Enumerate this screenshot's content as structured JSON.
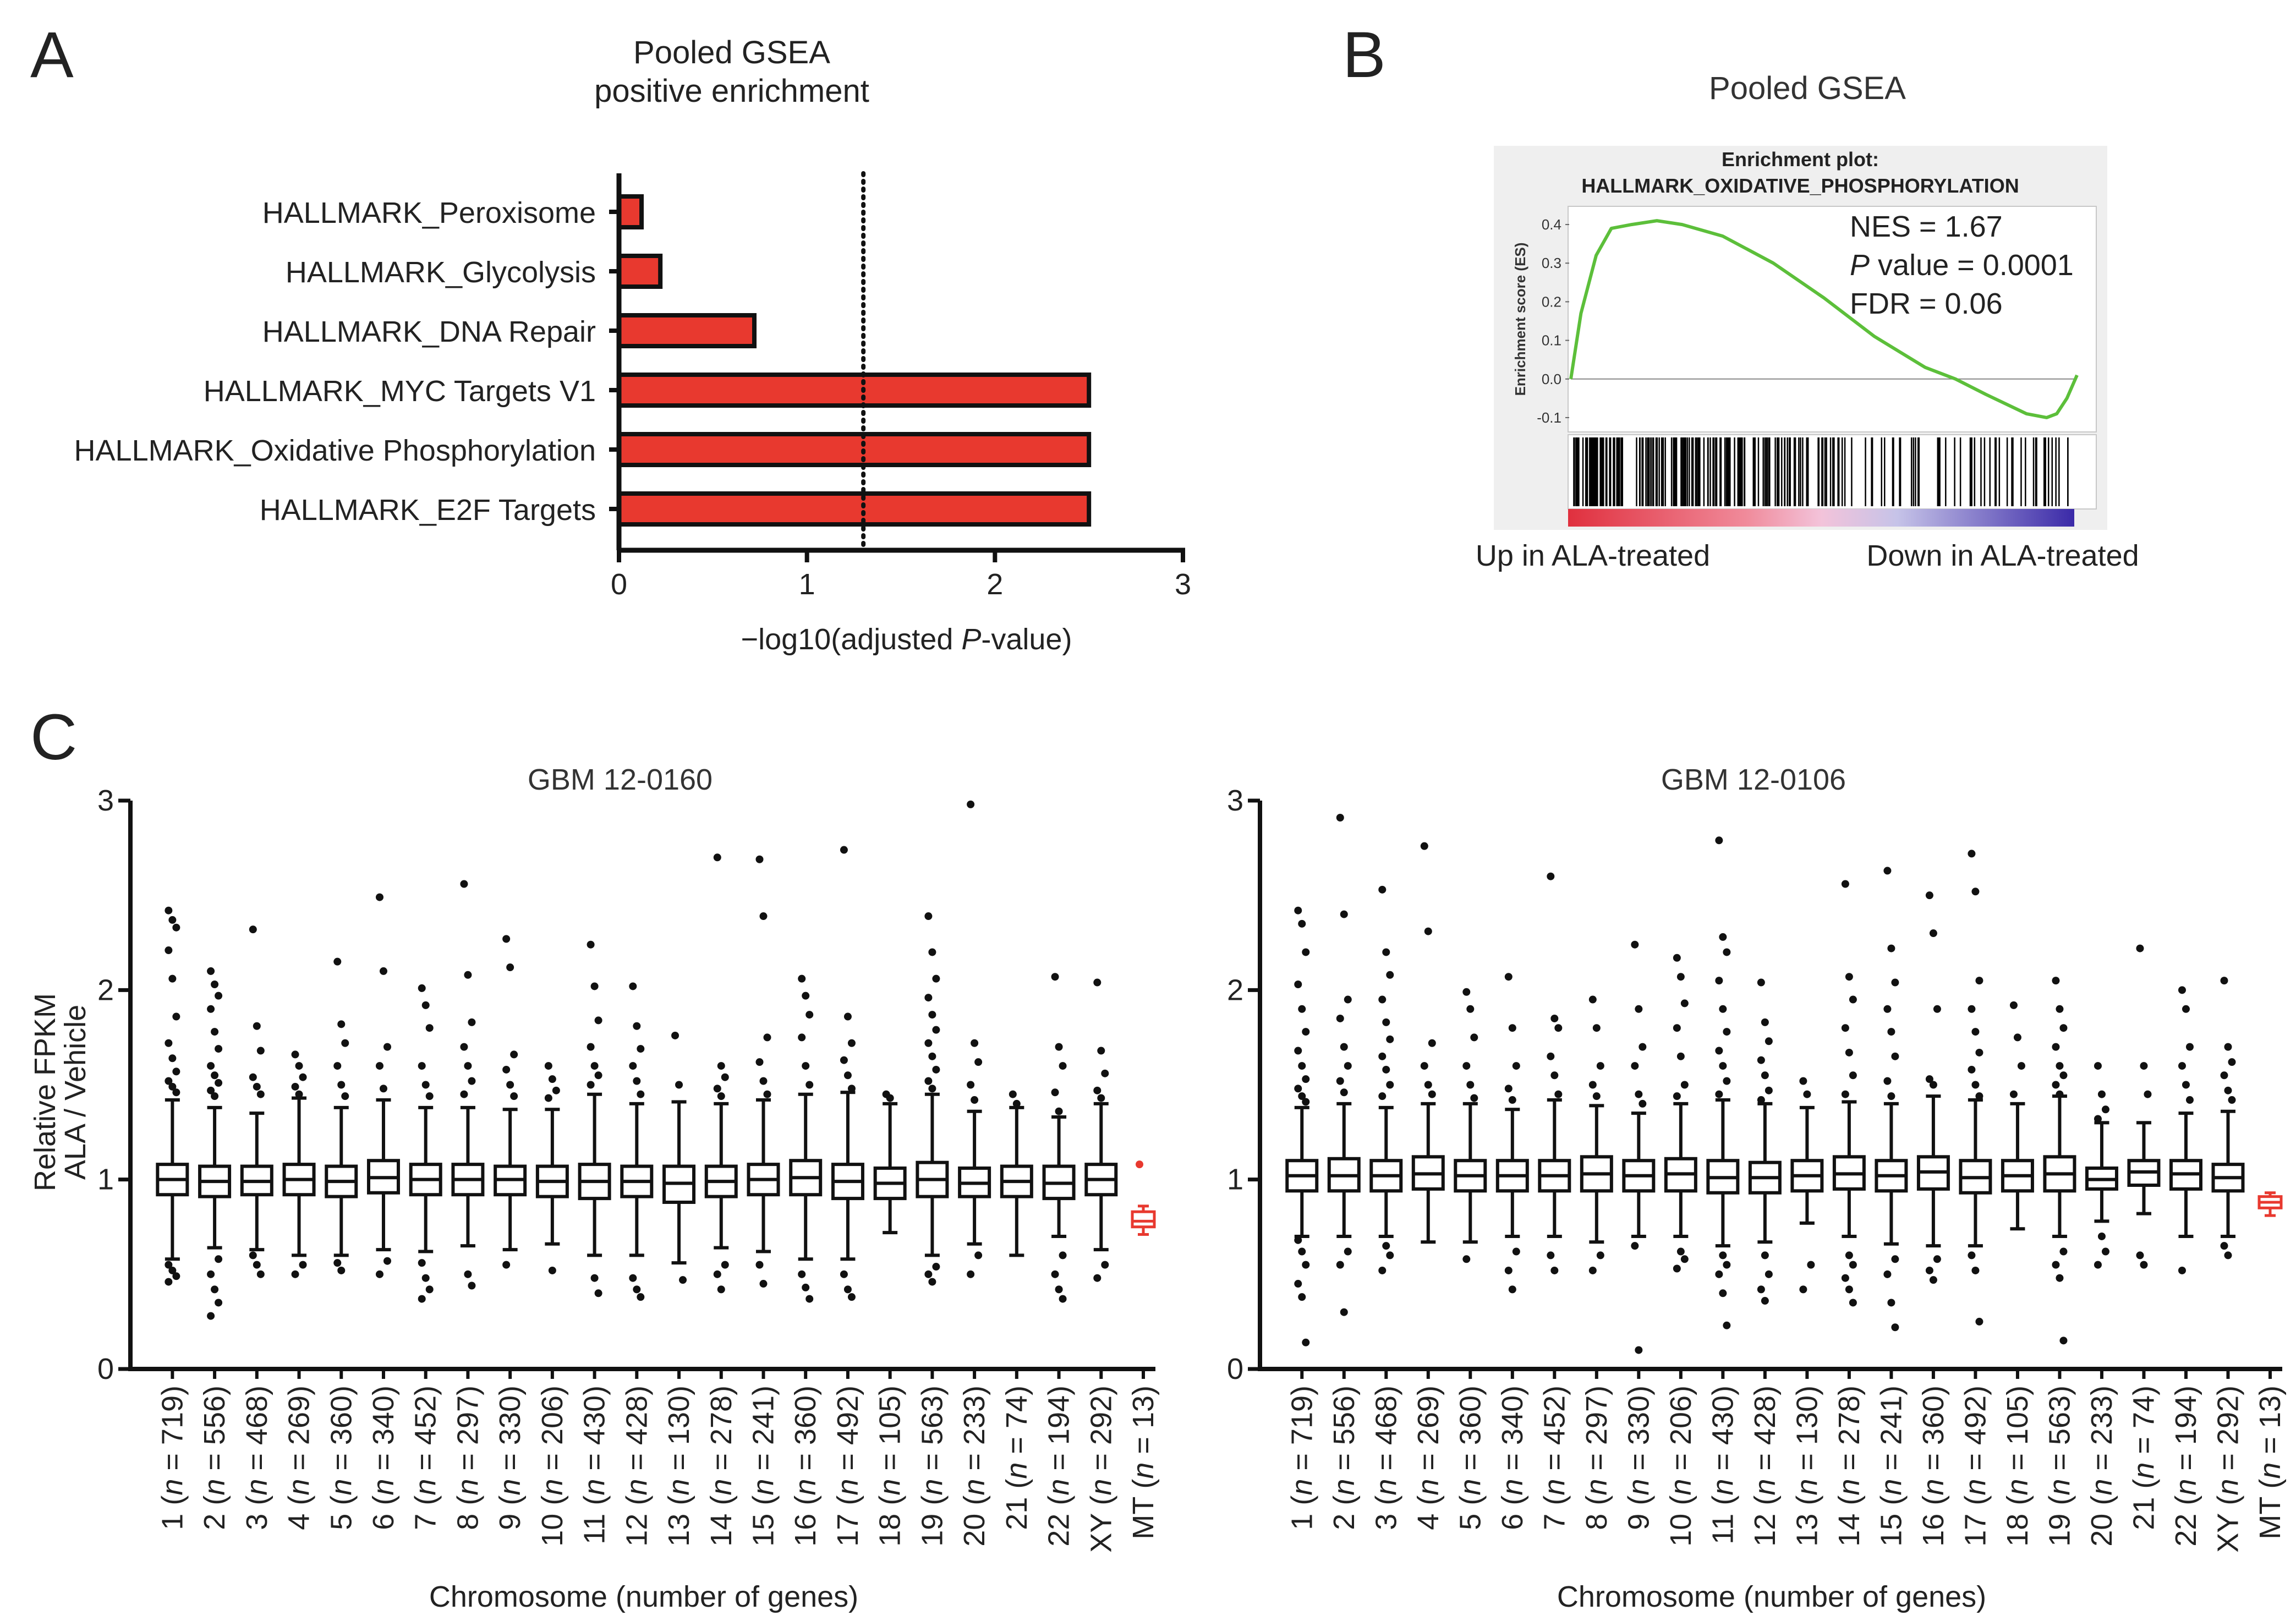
{
  "colors": {
    "bar": "#e8392f",
    "axis": "#111111",
    "es_curve": "#5cbf3a",
    "mt_box": "#e8392f",
    "text": "#222222"
  },
  "panels": {
    "a": {
      "letter": "A",
      "title_line1": "Pooled GSEA",
      "title_line2": "positive enrichment"
    },
    "b": {
      "letter": "B",
      "title": "Pooled GSEA",
      "plot_title_line1": "Enrichment plot:",
      "plot_title_line2": "HALLMARK_OXIDATIVE_PHOSPHORYLATION",
      "ylabel": "Enrichment score (ES)",
      "nes": "NES = 1.67",
      "p_italic": "P",
      "p_rest": " value = 0.0001",
      "fdr": "FDR = 0.06",
      "left_label": "Up in ALA-treated",
      "right_label": "Down in ALA-treated"
    },
    "c": {
      "letter": "C",
      "ylabel_line1": "Relative FPKM",
      "ylabel_line2": "ALA / Vehicle",
      "xlabel": "Chromosome (number of genes)",
      "left_title": "GBM 12-0160",
      "right_title": "GBM 12-0106"
    }
  },
  "chart_data": [
    {
      "type": "bar",
      "orientation": "horizontal",
      "categories": [
        "HALLMARK_Peroxisome",
        "HALLMARK_Glycolysis",
        "HALLMARK_DNA Repair",
        "HALLMARK_MYC Targets V1",
        "HALLMARK_Oxidative Phosphorylation",
        "HALLMARK_E2F Targets"
      ],
      "values": [
        0.12,
        0.22,
        0.72,
        2.5,
        2.5,
        2.5
      ],
      "xlabel_pre": "−log10(adjusted ",
      "xlabel_italic": "P",
      "xlabel_post": "-value)",
      "xlim": [
        0,
        3
      ],
      "xticks": [
        "0",
        "1",
        "2",
        "3"
      ],
      "threshold": 1.3
    },
    {
      "type": "line",
      "title": "Enrichment plot: HALLMARK_OXIDATIVE_PHOSPHORYLATION",
      "ylim": [
        -0.13,
        0.44
      ],
      "yticks": [
        "0.4",
        "0.3",
        "0.2",
        "0.1",
        "0.0",
        "-0.1"
      ],
      "x": [
        0,
        0.02,
        0.05,
        0.08,
        0.12,
        0.17,
        0.22,
        0.3,
        0.4,
        0.5,
        0.6,
        0.7,
        0.76,
        0.82,
        0.9,
        0.94,
        0.96,
        0.98,
        1.0
      ],
      "y": [
        0.0,
        0.17,
        0.32,
        0.39,
        0.4,
        0.41,
        0.4,
        0.37,
        0.3,
        0.21,
        0.11,
        0.03,
        0.0,
        -0.04,
        -0.09,
        -0.1,
        -0.09,
        -0.05,
        0.01
      ],
      "nes": 1.67,
      "p_value": 0.0001,
      "fdr": 0.06
    },
    {
      "type": "box",
      "title": "GBM 12-0160",
      "ylim": [
        0,
        3
      ],
      "yticks": [
        "0",
        "1",
        "2",
        "3"
      ],
      "categories": [
        "1 (n = 719)",
        "2 (n = 556)",
        "3 (n = 468)",
        "4 (n = 269)",
        "5 (n = 360)",
        "6 (n = 340)",
        "7 (n = 452)",
        "8 (n = 297)",
        "9 (n = 330)",
        "10 (n = 206)",
        "11 (n = 430)",
        "12 (n = 428)",
        "13 (n = 130)",
        "14 (n = 278)",
        "15 (n = 241)",
        "16 (n = 360)",
        "17 (n = 492)",
        "18 (n = 105)",
        "19 (n = 563)",
        "20 (n = 233)",
        "21 (n = 74)",
        "22 (n = 194)",
        "XY (n = 292)",
        "MT (n = 13)"
      ],
      "chrom": [
        "1",
        "2",
        "3",
        "4",
        "5",
        "6",
        "7",
        "8",
        "9",
        "10",
        "11",
        "12",
        "13",
        "14",
        "15",
        "16",
        "17",
        "18",
        "19",
        "20",
        "21",
        "22",
        "XY",
        "MT"
      ],
      "n": [
        "719",
        "556",
        "468",
        "269",
        "360",
        "340",
        "452",
        "297",
        "330",
        "206",
        "430",
        "428",
        "130",
        "278",
        "241",
        "360",
        "492",
        "105",
        "563",
        "233",
        "74",
        "194",
        "292",
        "13"
      ],
      "median": [
        1.0,
        0.99,
        0.99,
        1.0,
        0.99,
        1.01,
        1.0,
        1.0,
        1.0,
        0.99,
        0.99,
        0.99,
        0.98,
        0.99,
        1.0,
        1.01,
        0.99,
        0.98,
        1.0,
        0.98,
        0.99,
        0.98,
        1.0,
        0.78
      ],
      "q1": [
        0.92,
        0.91,
        0.92,
        0.92,
        0.91,
        0.93,
        0.92,
        0.92,
        0.92,
        0.91,
        0.9,
        0.91,
        0.88,
        0.91,
        0.92,
        0.92,
        0.9,
        0.9,
        0.91,
        0.91,
        0.91,
        0.9,
        0.92,
        0.75
      ],
      "q3": [
        1.08,
        1.07,
        1.07,
        1.08,
        1.07,
        1.1,
        1.08,
        1.08,
        1.07,
        1.07,
        1.08,
        1.07,
        1.07,
        1.07,
        1.08,
        1.1,
        1.08,
        1.06,
        1.09,
        1.06,
        1.07,
        1.07,
        1.08,
        0.83
      ],
      "wlow": [
        0.58,
        0.64,
        0.63,
        0.6,
        0.6,
        0.63,
        0.62,
        0.65,
        0.63,
        0.66,
        0.6,
        0.6,
        0.56,
        0.64,
        0.62,
        0.58,
        0.58,
        0.72,
        0.6,
        0.66,
        0.6,
        0.7,
        0.63,
        0.71
      ],
      "whigh": [
        1.42,
        1.38,
        1.35,
        1.43,
        1.38,
        1.42,
        1.38,
        1.38,
        1.37,
        1.37,
        1.45,
        1.4,
        1.41,
        1.4,
        1.42,
        1.45,
        1.46,
        1.4,
        1.45,
        1.36,
        1.38,
        1.33,
        1.4,
        0.86
      ],
      "outliers_high": [
        [
          2.42,
          2.37,
          2.33,
          2.21,
          2.06,
          1.86,
          1.72,
          1.64,
          1.57,
          1.52,
          1.49,
          1.46
        ],
        [
          2.1,
          2.03,
          1.97,
          1.9,
          1.78,
          1.69,
          1.6,
          1.55,
          1.51,
          1.47,
          1.44
        ],
        [
          2.32,
          1.81,
          1.68,
          1.54,
          1.49,
          1.45
        ],
        [
          1.66,
          1.6,
          1.54,
          1.49,
          1.45
        ],
        [
          2.15,
          1.82,
          1.72,
          1.6,
          1.5,
          1.44
        ],
        [
          2.49,
          2.1,
          1.7,
          1.6,
          1.48
        ],
        [
          2.01,
          1.92,
          1.8,
          1.6,
          1.5,
          1.44
        ],
        [
          2.56,
          2.08,
          1.83,
          1.7,
          1.6,
          1.52,
          1.45
        ],
        [
          2.27,
          2.12,
          1.66,
          1.58,
          1.5,
          1.44
        ],
        [
          1.6,
          1.53,
          1.47,
          1.43
        ],
        [
          2.24,
          2.02,
          1.84,
          1.7,
          1.6,
          1.55,
          1.5
        ],
        [
          2.02,
          1.81,
          1.69,
          1.6,
          1.52,
          1.45
        ],
        [
          1.76,
          1.5
        ],
        [
          2.7,
          1.6,
          1.54,
          1.48,
          1.44
        ],
        [
          2.69,
          2.39,
          1.75,
          1.62,
          1.52,
          1.45
        ],
        [
          2.06,
          1.97,
          1.87,
          1.75,
          1.6,
          1.5
        ],
        [
          2.74,
          1.86,
          1.72,
          1.63,
          1.55,
          1.48
        ],
        [
          1.45,
          1.43
        ],
        [
          2.39,
          2.2,
          2.06,
          1.96,
          1.87,
          1.79,
          1.72,
          1.65,
          1.58,
          1.52,
          1.48
        ],
        [
          2.98,
          1.72,
          1.62,
          1.5,
          1.42
        ],
        [
          1.45,
          1.4
        ],
        [
          2.07,
          1.7,
          1.6,
          1.46,
          1.36
        ],
        [
          2.04,
          1.68,
          1.56,
          1.47,
          1.43
        ],
        [
          1.08
        ]
      ],
      "outliers_low": [
        [
          0.55,
          0.52,
          0.49,
          0.46
        ],
        [
          0.58,
          0.5,
          0.42,
          0.35,
          0.28
        ],
        [
          0.6,
          0.55,
          0.5
        ],
        [
          0.55,
          0.5
        ],
        [
          0.56,
          0.52
        ],
        [
          0.57,
          0.5
        ],
        [
          0.56,
          0.48,
          0.42,
          0.37
        ],
        [
          0.5,
          0.44
        ],
        [
          0.55
        ],
        [
          0.52
        ],
        [
          0.48,
          0.4
        ],
        [
          0.48,
          0.42,
          0.38
        ],
        [
          0.47
        ],
        [
          0.55,
          0.5,
          0.42
        ],
        [
          0.55,
          0.45
        ],
        [
          0.5,
          0.43,
          0.37
        ],
        [
          0.5,
          0.42,
          0.38
        ],
        [],
        [
          0.54,
          0.5,
          0.46
        ],
        [
          0.6,
          0.5
        ],
        [],
        [
          0.6,
          0.5,
          0.42,
          0.37
        ],
        [
          0.55,
          0.48
        ],
        []
      ]
    },
    {
      "type": "box",
      "title": "GBM 12-0106",
      "ylim": [
        0,
        3
      ],
      "yticks": [
        "0",
        "1",
        "2",
        "3"
      ],
      "categories": [
        "1 (n = 719)",
        "2 (n = 556)",
        "3 (n = 468)",
        "4 (n = 269)",
        "5 (n = 360)",
        "6 (n = 340)",
        "7 (n = 452)",
        "8 (n = 297)",
        "9 (n = 330)",
        "10 (n = 206)",
        "11 (n = 430)",
        "12 (n = 428)",
        "13 (n = 130)",
        "14 (n = 278)",
        "15 (n = 241)",
        "16 (n = 360)",
        "17 (n = 492)",
        "18 (n = 105)",
        "19 (n = 563)",
        "20 (n = 233)",
        "21 (n = 74)",
        "22 (n = 194)",
        "XY (n = 292)",
        "MT (n = 13)"
      ],
      "chrom": [
        "1",
        "2",
        "3",
        "4",
        "5",
        "6",
        "7",
        "8",
        "9",
        "10",
        "11",
        "12",
        "13",
        "14",
        "15",
        "16",
        "17",
        "18",
        "19",
        "20",
        "21",
        "22",
        "XY",
        "MT"
      ],
      "n": [
        "719",
        "556",
        "468",
        "269",
        "360",
        "340",
        "452",
        "297",
        "330",
        "206",
        "430",
        "428",
        "130",
        "278",
        "241",
        "360",
        "492",
        "105",
        "563",
        "233",
        "74",
        "194",
        "292",
        "13"
      ],
      "median": [
        1.02,
        1.02,
        1.02,
        1.03,
        1.02,
        1.02,
        1.02,
        1.03,
        1.02,
        1.03,
        1.01,
        1.01,
        1.02,
        1.03,
        1.02,
        1.04,
        1.01,
        1.02,
        1.03,
        1.0,
        1.04,
        1.03,
        1.01,
        0.88
      ],
      "q1": [
        0.94,
        0.94,
        0.94,
        0.95,
        0.94,
        0.94,
        0.94,
        0.94,
        0.94,
        0.94,
        0.93,
        0.93,
        0.94,
        0.95,
        0.94,
        0.95,
        0.93,
        0.94,
        0.94,
        0.95,
        0.97,
        0.95,
        0.94,
        0.85
      ],
      "q3": [
        1.1,
        1.11,
        1.1,
        1.12,
        1.1,
        1.1,
        1.1,
        1.12,
        1.1,
        1.11,
        1.1,
        1.09,
        1.1,
        1.12,
        1.1,
        1.12,
        1.1,
        1.1,
        1.12,
        1.06,
        1.1,
        1.1,
        1.08,
        0.91
      ],
      "wlow": [
        0.7,
        0.7,
        0.7,
        0.67,
        0.67,
        0.7,
        0.7,
        0.67,
        0.7,
        0.7,
        0.65,
        0.67,
        0.77,
        0.7,
        0.66,
        0.65,
        0.65,
        0.74,
        0.7,
        0.78,
        0.82,
        0.7,
        0.7,
        0.81
      ],
      "whigh": [
        1.38,
        1.4,
        1.38,
        1.4,
        1.4,
        1.37,
        1.42,
        1.39,
        1.35,
        1.4,
        1.42,
        1.4,
        1.38,
        1.41,
        1.4,
        1.44,
        1.42,
        1.4,
        1.44,
        1.3,
        1.3,
        1.35,
        1.36,
        0.93
      ],
      "outliers_high": [
        [
          2.42,
          2.35,
          2.2,
          2.03,
          1.9,
          1.78,
          1.68,
          1.6,
          1.53,
          1.48,
          1.44,
          1.41
        ],
        [
          2.91,
          2.4,
          1.95,
          1.85,
          1.7,
          1.6,
          1.52,
          1.46
        ],
        [
          2.53,
          2.2,
          2.08,
          1.95,
          1.83,
          1.74,
          1.65,
          1.58,
          1.5,
          1.44
        ],
        [
          2.76,
          2.31,
          1.72,
          1.6,
          1.5,
          1.45
        ],
        [
          1.99,
          1.9,
          1.75,
          1.6,
          1.5,
          1.43
        ],
        [
          2.07,
          1.8,
          1.6,
          1.48,
          1.42
        ],
        [
          2.6,
          1.85,
          1.8,
          1.65,
          1.55,
          1.45
        ],
        [
          1.95,
          1.8,
          1.6,
          1.5,
          1.44
        ],
        [
          2.24,
          1.9,
          1.7,
          1.6,
          1.45,
          1.4
        ],
        [
          2.17,
          2.07,
          1.93,
          1.8,
          1.65,
          1.5,
          1.44
        ],
        [
          2.79,
          2.28,
          2.2,
          2.05,
          1.9,
          1.78,
          1.68,
          1.6,
          1.52,
          1.45
        ],
        [
          2.04,
          1.83,
          1.73,
          1.63,
          1.55,
          1.47,
          1.42
        ],
        [
          1.52,
          1.45
        ],
        [
          2.56,
          2.07,
          1.95,
          1.8,
          1.67,
          1.55,
          1.45
        ],
        [
          2.63,
          2.22,
          2.04,
          1.9,
          1.78,
          1.65,
          1.52,
          1.44
        ],
        [
          2.5,
          2.3,
          1.9,
          1.53,
          1.5
        ],
        [
          2.72,
          2.52,
          2.05,
          1.9,
          1.78,
          1.67,
          1.58,
          1.5,
          1.44
        ],
        [
          1.92,
          1.75,
          1.6,
          1.45
        ],
        [
          2.05,
          1.9,
          1.8,
          1.7,
          1.6,
          1.55,
          1.5,
          1.45
        ],
        [
          1.6,
          1.45,
          1.37,
          1.32
        ],
        [
          2.22,
          1.6,
          1.45
        ],
        [
          2.0,
          1.9,
          1.7,
          1.6,
          1.5,
          1.42
        ],
        [
          2.05,
          1.7,
          1.62,
          1.55,
          1.47,
          1.42
        ],
        []
      ],
      "outliers_low": [
        [
          0.68,
          0.62,
          0.55,
          0.45,
          0.38,
          0.14
        ],
        [
          0.62,
          0.55,
          0.3
        ],
        [
          0.65,
          0.6,
          0.52
        ],
        [],
        [
          0.58
        ],
        [
          0.62,
          0.52,
          0.42
        ],
        [
          0.6,
          0.52
        ],
        [
          0.6,
          0.52
        ],
        [
          0.65,
          0.1
        ],
        [
          0.62,
          0.58,
          0.53
        ],
        [
          0.6,
          0.55,
          0.5,
          0.4,
          0.23
        ],
        [
          0.6,
          0.5,
          0.42,
          0.36
        ],
        [
          0.55,
          0.42
        ],
        [
          0.6,
          0.55,
          0.48,
          0.42,
          0.35
        ],
        [
          0.58,
          0.5,
          0.35,
          0.22
        ],
        [
          0.58,
          0.52,
          0.47
        ],
        [
          0.6,
          0.52,
          0.25
        ],
        [],
        [
          0.62,
          0.55,
          0.48,
          0.15
        ],
        [
          0.7,
          0.62,
          0.55
        ],
        [
          0.6,
          0.55
        ],
        [
          0.52
        ],
        [
          0.65,
          0.6
        ],
        []
      ]
    }
  ]
}
